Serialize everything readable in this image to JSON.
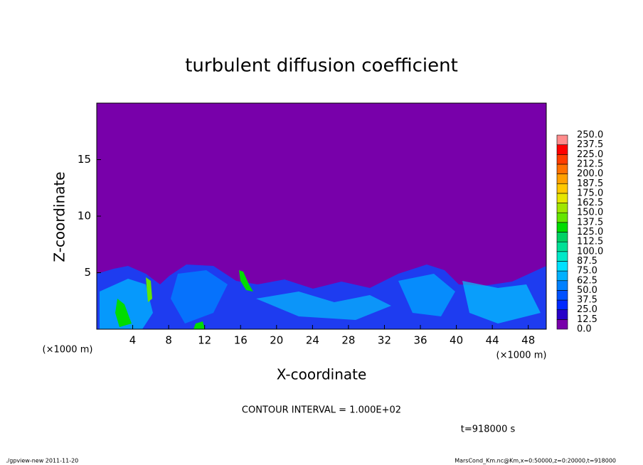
{
  "chart_data": {
    "type": "contour",
    "title": "turbulent diffusion coefficient",
    "x_label": "X-coordinate",
    "y_label": "Z-coordinate",
    "x_unit": "(×1000 m)",
    "y_unit": "(×1000 m)",
    "xlim": [
      0,
      50
    ],
    "ylim": [
      0,
      20
    ],
    "xticks": [
      4,
      8,
      12,
      16,
      20,
      24,
      28,
      32,
      36,
      40,
      44,
      48
    ],
    "yticks": [
      5,
      10,
      15
    ],
    "colorbar": {
      "levels": [
        {
          "value": 0,
          "label": "0.0"
        },
        {
          "value": 12.5,
          "label": "12.5"
        },
        {
          "value": 25,
          "label": "25.0"
        },
        {
          "value": 37.5,
          "label": "37.5"
        },
        {
          "value": 50,
          "label": "50.0"
        },
        {
          "value": 62.5,
          "label": "62.5"
        },
        {
          "value": 75,
          "label": "75.0"
        },
        {
          "value": 87.5,
          "label": "87.5"
        },
        {
          "value": 100,
          "label": "100.0"
        },
        {
          "value": 112.5,
          "label": "112.5"
        },
        {
          "value": 125,
          "label": "125.0"
        },
        {
          "value": 137.5,
          "label": "137.5"
        },
        {
          "value": 150,
          "label": "150.0"
        },
        {
          "value": 162.5,
          "label": "162.5"
        },
        {
          "value": 175,
          "label": "175.0"
        },
        {
          "value": 187.5,
          "label": "187.5"
        },
        {
          "value": 200,
          "label": "200.0"
        },
        {
          "value": 212.5,
          "label": "212.5"
        },
        {
          "value": 225,
          "label": "225.0"
        },
        {
          "value": 237.5,
          "label": "237.5"
        },
        {
          "value": 250,
          "label": "250.0"
        }
      ],
      "colors": [
        "#7800aa",
        "#2800c8",
        "#0028ff",
        "#0050ff",
        "#0080ff",
        "#00b0ff",
        "#00e0ff",
        "#00e8c8",
        "#00e096",
        "#00d264",
        "#00dc00",
        "#64e600",
        "#a0e600",
        "#e6e600",
        "#ffc800",
        "#ffa000",
        "#ff7000",
        "#ff3c00",
        "#ff0000",
        "#ff8c8c"
      ]
    },
    "annotation": "CONTOUR INTERVAL = 1.000E+02",
    "time_label": "t=918000 s",
    "footer_left": "./gpview-new  2011-11-20",
    "footer_right": "MarsCond_Km.nc@Km,x=0:50000,z=0:20000,t=918000"
  }
}
